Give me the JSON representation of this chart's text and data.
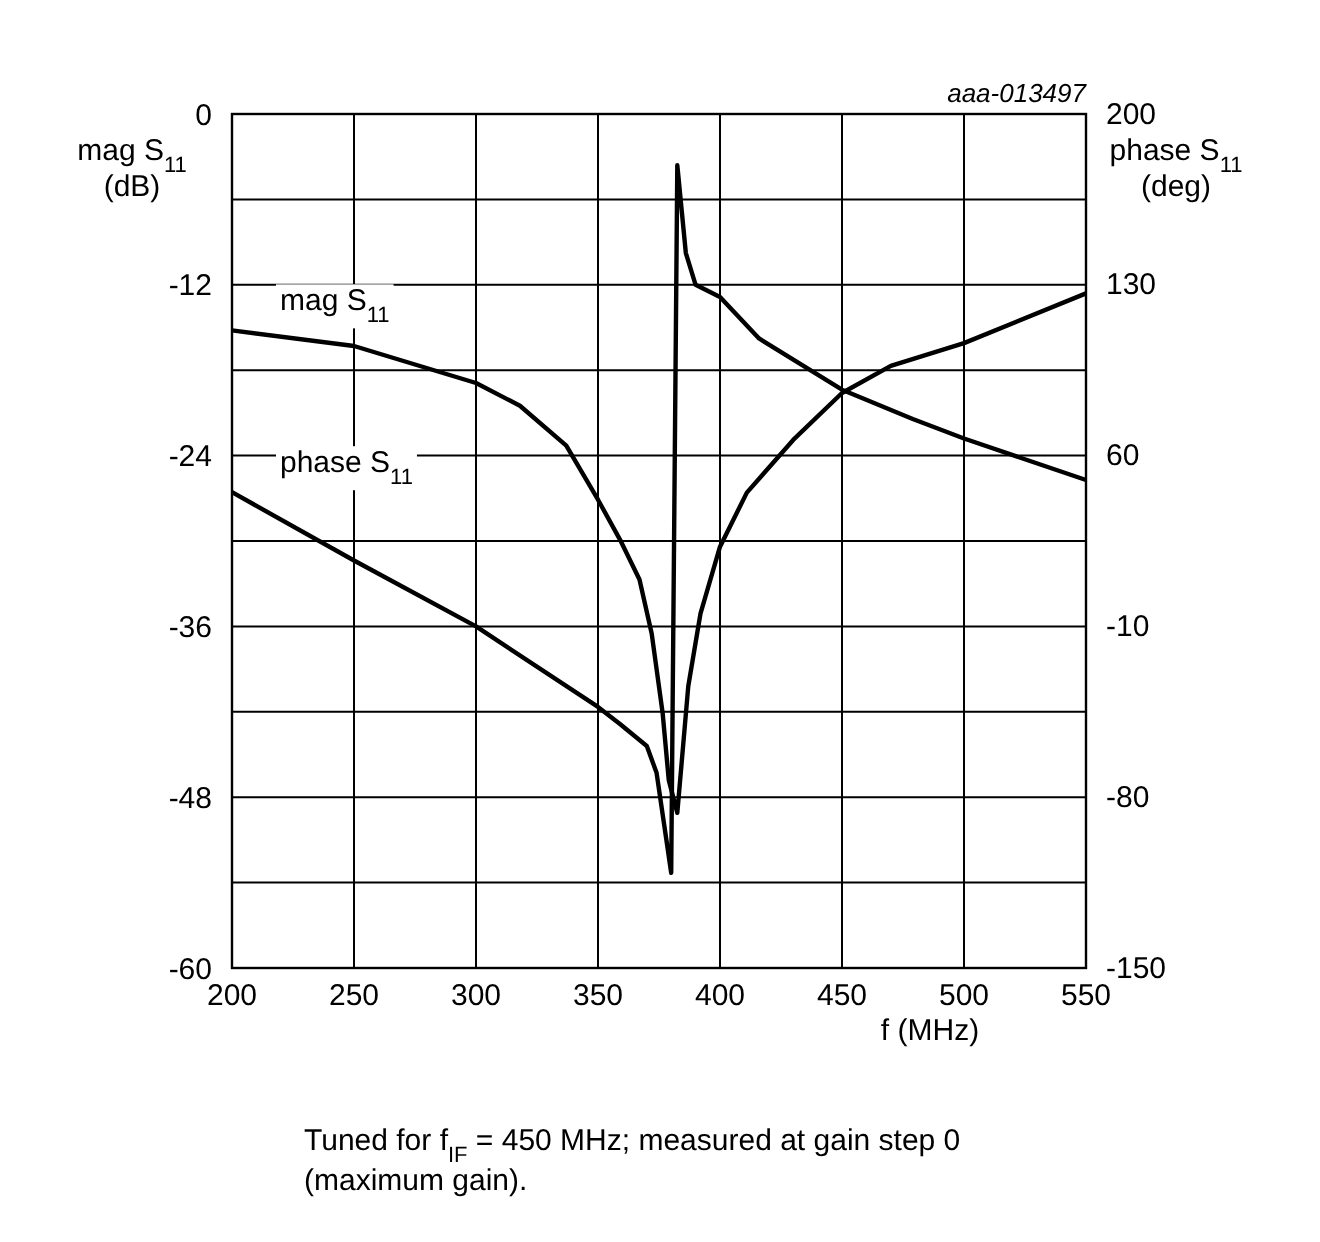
{
  "chart_data": {
    "type": "line",
    "xlabel": "f (MHz)",
    "ylabel": "mag S$_{11}$\n(dB)",
    "y2label": "phase S$_{11}$\n(deg)",
    "annotations": [
      "aaa-013497",
      "Tuned for f$_{IF}$ = 450 MHz; measured at gain step 0\n(maximum gain)."
    ],
    "xlim": [
      200,
      550
    ],
    "xticks": [
      200,
      250,
      300,
      350,
      400,
      450,
      500,
      550
    ],
    "ylim": [
      -60,
      0
    ],
    "yticks": [
      -60,
      {
        "value": -54,
        "label": null
      },
      -48,
      {
        "value": -42,
        "label": null
      },
      -36,
      {
        "value": -30,
        "label": null
      },
      -24,
      {
        "value": -18,
        "label": null
      },
      -12,
      {
        "value": -6,
        "label": null
      },
      0
    ],
    "y2lim": [
      -150,
      200
    ],
    "y2ticks": [
      -150,
      -80,
      -10,
      60,
      130,
      200
    ],
    "grid": true,
    "line_style": "solid",
    "marker": "none",
    "series": [
      {
        "name": "mag S$_{11}$",
        "color": "#000000",
        "x": [
          200,
          250,
          300,
          318,
          337,
          350,
          359,
          367,
          372,
          376.5,
          379,
          382.5,
          387,
          392,
          400,
          411,
          430,
          450,
          470,
          500,
          550
        ],
        "values": [
          -15.2,
          -16.3,
          -18.9,
          -20.5,
          -23.3,
          -27.1,
          -29.9,
          -32.7,
          -36.5,
          -42.1,
          -46.8,
          -49.1,
          -40.2,
          -35.1,
          -30.4,
          -26.6,
          -22.9,
          -19.6,
          -17.7,
          -16.1,
          -12.6
        ]
      },
      {
        "name": "phase S$_{11}$",
        "color": "#000000",
        "axis": "y2",
        "x": [
          200,
          250,
          300,
          350,
          359,
          370,
          374,
          380,
          382.5,
          386,
          390,
          400,
          416,
          450,
          479,
          500,
          550
        ],
        "values": [
          45,
          17,
          -10,
          -43,
          -50,
          -59,
          -70,
          -111,
          179,
          143,
          130,
          125,
          108,
          87,
          75,
          67,
          50
        ]
      }
    ]
  }
}
